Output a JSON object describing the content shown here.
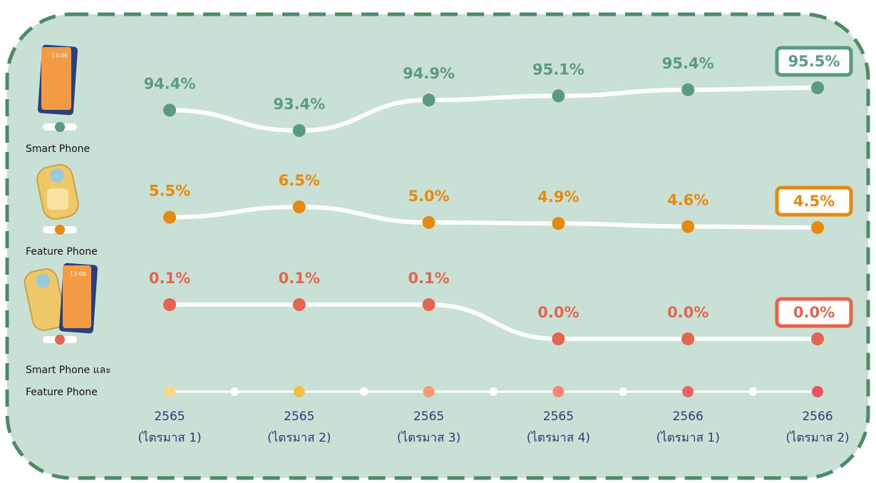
{
  "chart_data": {
    "type": "line",
    "categories": [
      [
        "2565",
        "(ไตรมาส 1)"
      ],
      [
        "2565",
        "(ไตรมาส 2)"
      ],
      [
        "2565",
        "(ไตรมาส 3)"
      ],
      [
        "2565",
        "(ไตรมาส 4)"
      ],
      [
        "2566",
        "(ไตรมาส 1)"
      ],
      [
        "2566",
        "(ไตรมาส 2)"
      ]
    ],
    "series": [
      {
        "name": "Smart Phone",
        "color": "#5a9a7e",
        "values": [
          94.4,
          93.4,
          94.9,
          95.1,
          95.4,
          95.5
        ],
        "value_labels": [
          "94.4%",
          "93.4%",
          "94.9%",
          "95.1%",
          "95.4%",
          "95.5%"
        ]
      },
      {
        "name": "Feature Phone",
        "color": "#e8890f",
        "values": [
          5.5,
          6.5,
          5.0,
          4.9,
          4.6,
          4.5
        ],
        "value_labels": [
          "5.5%",
          "6.5%",
          "5.0%",
          "4.9%",
          "4.6%",
          "4.5%"
        ]
      },
      {
        "name": "Smart Phone และ Feature Phone",
        "color": "#e4644f",
        "values": [
          0.1,
          0.1,
          0.1,
          0.0,
          0.0,
          0.0
        ],
        "value_labels": [
          "0.1%",
          "0.1%",
          "0.1%",
          "0.0%",
          "0.0%",
          "0.0%"
        ]
      }
    ]
  }
}
